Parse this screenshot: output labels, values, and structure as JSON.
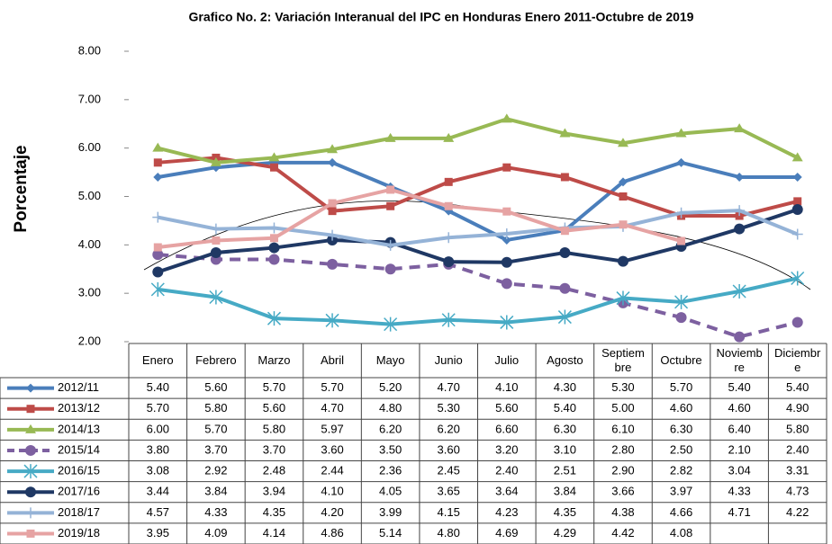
{
  "chart_data": {
    "type": "line",
    "title": "Grafico No. 2: Variación Interanual del IPC en Honduras Enero 2011-Octubre de 2019",
    "y_label": "Porcentaje",
    "categories": [
      "Enero",
      "Febrero",
      "Marzo",
      "Abril",
      "Mayo",
      "Junio",
      "Julio",
      "Agosto",
      "Septiembre",
      "Octubre",
      "Noviembre",
      "Diciembre"
    ],
    "ylim": [
      2,
      8
    ],
    "yticks": [
      {
        "value": 2,
        "label": "2.00"
      },
      {
        "value": 3,
        "label": "3.00"
      },
      {
        "value": 4,
        "label": "4.00"
      },
      {
        "value": 5,
        "label": "5.00"
      },
      {
        "value": 6,
        "label": "6.00"
      },
      {
        "value": 7,
        "label": "7.00"
      },
      {
        "value": 8,
        "label": "8.00"
      }
    ],
    "series": [
      {
        "name": "2012/11",
        "color": "#4a7ebb",
        "marker": "diamond",
        "values": [
          5.4,
          5.6,
          5.7,
          5.7,
          5.2,
          4.7,
          4.1,
          4.3,
          5.3,
          5.7,
          5.4,
          5.4
        ],
        "value_labels": [
          "5.40",
          "5.60",
          "5.70",
          "5.70",
          "5.20",
          "4.70",
          "4.10",
          "4.30",
          "5.30",
          "5.70",
          "5.40",
          "5.40"
        ]
      },
      {
        "name": "2013/12",
        "color": "#be4b48",
        "marker": "square",
        "values": [
          5.7,
          5.8,
          5.6,
          4.7,
          4.8,
          5.3,
          5.6,
          5.4,
          5.0,
          4.6,
          4.6,
          4.9
        ],
        "value_labels": [
          "5.70",
          "5.80",
          "5.60",
          "4.70",
          "4.80",
          "5.30",
          "5.60",
          "5.40",
          "5.00",
          "4.60",
          "4.60",
          "4.90"
        ]
      },
      {
        "name": "2014/13",
        "color": "#98b954",
        "marker": "triangle",
        "values": [
          6.0,
          5.7,
          5.8,
          5.97,
          6.2,
          6.2,
          6.6,
          6.3,
          6.1,
          6.3,
          6.4,
          5.8
        ],
        "value_labels": [
          "6.00",
          "5.70",
          "5.80",
          "5.97",
          "6.20",
          "6.20",
          "6.60",
          "6.30",
          "6.10",
          "6.30",
          "6.40",
          "5.80"
        ]
      },
      {
        "name": "2015/14",
        "color": "#7d60a0",
        "marker": "circle",
        "dash": true,
        "values": [
          3.8,
          3.7,
          3.7,
          3.6,
          3.5,
          3.6,
          3.2,
          3.1,
          2.8,
          2.5,
          2.1,
          2.4
        ],
        "value_labels": [
          "3.80",
          "3.70",
          "3.70",
          "3.60",
          "3.50",
          "3.60",
          "3.20",
          "3.10",
          "2.80",
          "2.50",
          "2.10",
          "2.40"
        ]
      },
      {
        "name": "2016/15",
        "color": "#46aac5",
        "marker": "star",
        "values": [
          3.08,
          2.92,
          2.48,
          2.44,
          2.36,
          2.45,
          2.4,
          2.51,
          2.9,
          2.82,
          3.04,
          3.31
        ],
        "value_labels": [
          "3.08",
          "2.92",
          "2.48",
          "2.44",
          "2.36",
          "2.45",
          "2.40",
          "2.51",
          "2.90",
          "2.82",
          "3.04",
          "3.31"
        ]
      },
      {
        "name": "2017/16",
        "color": "#1f3864",
        "marker": "circle",
        "values": [
          3.44,
          3.84,
          3.94,
          4.1,
          4.05,
          3.65,
          3.64,
          3.84,
          3.66,
          3.97,
          4.33,
          4.73
        ],
        "value_labels": [
          "3.44",
          "3.84",
          "3.94",
          "4.10",
          "4.05",
          "3.65",
          "3.64",
          "3.84",
          "3.66",
          "3.97",
          "4.33",
          "4.73"
        ]
      },
      {
        "name": "2018/17",
        "color": "#95b3d7",
        "marker": "plus",
        "values": [
          4.57,
          4.33,
          4.35,
          4.2,
          3.99,
          4.15,
          4.23,
          4.35,
          4.38,
          4.66,
          4.71,
          4.22
        ],
        "value_labels": [
          "4.57",
          "4.33",
          "4.35",
          "4.20",
          "3.99",
          "4.15",
          "4.23",
          "4.35",
          "4.38",
          "4.66",
          "4.71",
          "4.22"
        ]
      },
      {
        "name": "2019/18",
        "color": "#e6a3a3",
        "marker": "square",
        "values": [
          3.95,
          4.09,
          4.14,
          4.86,
          5.14,
          4.8,
          4.69,
          4.29,
          4.42,
          4.08,
          null,
          null
        ],
        "value_labels": [
          "3.95",
          "4.09",
          "4.14",
          "4.86",
          "5.14",
          "4.80",
          "4.69",
          "4.29",
          "4.42",
          "4.08",
          null,
          null
        ]
      }
    ]
  }
}
